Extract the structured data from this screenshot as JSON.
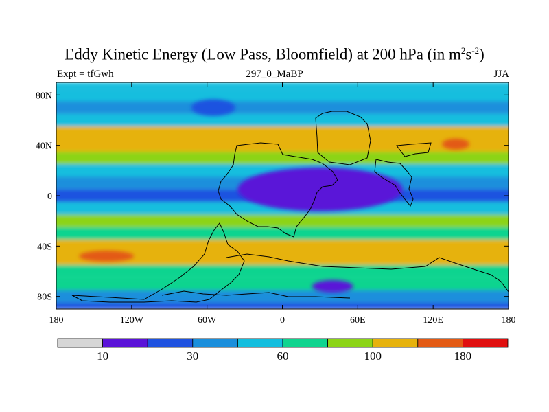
{
  "title": {
    "main": "Eddy Kinetic Energy (Low Pass, Bloomfield) at 200 hPa (in m",
    "sup1": "2",
    "mid": "s",
    "sup2": "-2",
    "end": ")"
  },
  "subtitle": {
    "left": "Expt = tfGwh",
    "center": "297_0_MaBP",
    "right": "JJA"
  },
  "colors": {
    "cb0": "#d6d6d6",
    "cb1": "#5a13d8",
    "cb2": "#1e52e0",
    "cb3": "#1a8fdc",
    "cb4": "#12bede",
    "cb5": "#0fd48f",
    "cb6": "#8cd416",
    "cb7": "#e6b20d",
    "cb8": "#e35a14",
    "cb9": "#e00f0f"
  },
  "chart_data": {
    "type": "heatmap",
    "title": "Eddy Kinetic Energy (Low Pass, Bloomfield) at 200 hPa (in m2s-2)",
    "units": "m2 s-2",
    "level": "200 hPa",
    "season": "JJA",
    "experiment": "tfGwh",
    "xlim": [
      -180,
      180
    ],
    "ylim": [
      -90,
      90
    ],
    "xticks": [
      {
        "value": -180,
        "label": "180"
      },
      {
        "value": -120,
        "label": "120W"
      },
      {
        "value": -60,
        "label": "60W"
      },
      {
        "value": 0,
        "label": "0"
      },
      {
        "value": 60,
        "label": "60E"
      },
      {
        "value": 120,
        "label": "120E"
      },
      {
        "value": 180,
        "label": "180"
      }
    ],
    "yticks": [
      {
        "value": 80,
        "label": "80N"
      },
      {
        "value": 40,
        "label": "40N"
      },
      {
        "value": 0,
        "label": "0"
      },
      {
        "value": -40,
        "label": "40S"
      },
      {
        "value": -80,
        "label": "80S"
      }
    ],
    "levels": [
      10,
      20,
      30,
      45,
      60,
      80,
      100,
      140,
      180
    ],
    "colorbar_labels": [
      {
        "value": 10,
        "label": "10"
      },
      {
        "value": 30,
        "label": "30"
      },
      {
        "value": 60,
        "label": "60"
      },
      {
        "value": 100,
        "label": "100"
      },
      {
        "value": 180,
        "label": "180"
      }
    ],
    "latitudes": [
      90,
      80,
      70,
      60,
      50,
      40,
      30,
      20,
      10,
      0,
      -10,
      -20,
      -30,
      -40,
      -50,
      -60,
      -70,
      -80,
      -90
    ],
    "zonal_band_values": [
      55,
      50,
      42,
      55,
      110,
      115,
      90,
      55,
      30,
      22,
      50,
      80,
      75,
      110,
      100,
      75,
      60,
      35,
      20
    ],
    "features": [
      {
        "name": "north-pacific-low",
        "lon": -55,
        "lat": 70,
        "value": 28
      },
      {
        "name": "asian-jet-max",
        "lon": 138,
        "lat": 41,
        "value": 150
      },
      {
        "name": "south-pacific-max",
        "lon": -140,
        "lat": -48,
        "value": 150
      },
      {
        "name": "tropical-minimum",
        "lon": 30,
        "lat": 5,
        "value": 12
      },
      {
        "name": "indian-ocean-low",
        "lon": 40,
        "lat": -72,
        "value": 15
      }
    ]
  }
}
